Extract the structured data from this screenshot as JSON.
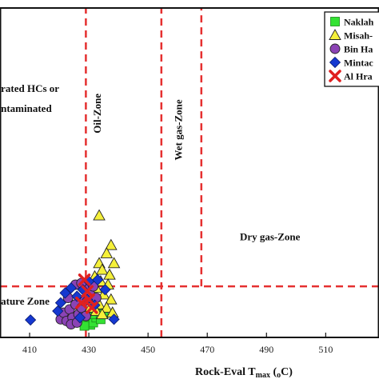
{
  "chart_data": {
    "type": "scatter",
    "title": "",
    "xlabel": "Rock-Eval T",
    "xlabel_sub": "max",
    "xlabel_unit": " (",
    "xlabel_unit_sub": "o",
    "xlabel_unit_end": "C)",
    "ylabel": "",
    "xlim": [
      400,
      528
    ],
    "ylim": [
      0,
      1.0
    ],
    "x_ticks": [
      410,
      430,
      450,
      470,
      490,
      510
    ],
    "x_tick_labels": [
      "410",
      "430",
      "450",
      "470",
      "490",
      "510"
    ],
    "grid": false,
    "legend_position": "top-right",
    "boundaries": {
      "vertical": [
        {
          "x": 429,
          "y_from": 0.0,
          "y_to": 1.0
        },
        {
          "x": 454.5,
          "y_from": 0.0,
          "y_to": 1.0
        },
        {
          "x": 468,
          "y_from": 0.155,
          "y_to": 1.0
        }
      ],
      "horizontal": [
        {
          "y": 0.155,
          "x_from": 400,
          "x_to": 528
        }
      ],
      "color": "#e53030"
    },
    "zones": [
      {
        "label": "rated HCs or",
        "x": 400.3,
        "y": 0.745
      },
      {
        "label": "ntaminated",
        "x": 400.3,
        "y": 0.685
      },
      {
        "label": "Oil-Zone",
        "x": 434,
        "y": 0.68,
        "rotated": true
      },
      {
        "label": "Wet gas-Zone",
        "x": 461.5,
        "y": 0.63,
        "rotated": true
      },
      {
        "label": "Dry gas-Zone",
        "x": 481,
        "y": 0.295
      },
      {
        "label": "ature Zone",
        "x": 400.3,
        "y": 0.1
      }
    ],
    "series": [
      {
        "name": "Naklah",
        "marker": "square",
        "color": "#33e233",
        "points": [
          {
            "x": 429.5,
            "y": 0.05
          },
          {
            "x": 430.5,
            "y": 0.038
          },
          {
            "x": 431.5,
            "y": 0.045
          },
          {
            "x": 432.5,
            "y": 0.06
          },
          {
            "x": 433,
            "y": 0.075
          },
          {
            "x": 434,
            "y": 0.055
          },
          {
            "x": 435,
            "y": 0.07
          },
          {
            "x": 428.5,
            "y": 0.035
          },
          {
            "x": 431,
            "y": 0.07
          }
        ]
      },
      {
        "name": "Misah-",
        "marker": "triangle",
        "color": "#f5f03a",
        "points": [
          {
            "x": 433.5,
            "y": 0.37
          },
          {
            "x": 437.5,
            "y": 0.28
          },
          {
            "x": 436,
            "y": 0.255
          },
          {
            "x": 438.5,
            "y": 0.225
          },
          {
            "x": 433.5,
            "y": 0.225
          },
          {
            "x": 434.5,
            "y": 0.205
          },
          {
            "x": 437,
            "y": 0.19
          },
          {
            "x": 432,
            "y": 0.185
          },
          {
            "x": 434,
            "y": 0.17
          },
          {
            "x": 436.5,
            "y": 0.16
          },
          {
            "x": 432.5,
            "y": 0.15
          },
          {
            "x": 435,
            "y": 0.13
          },
          {
            "x": 431.5,
            "y": 0.12
          },
          {
            "x": 437.5,
            "y": 0.115
          },
          {
            "x": 433.5,
            "y": 0.1
          },
          {
            "x": 436,
            "y": 0.09
          },
          {
            "x": 430.5,
            "y": 0.09
          },
          {
            "x": 432.5,
            "y": 0.08
          },
          {
            "x": 438,
            "y": 0.075
          },
          {
            "x": 434.5,
            "y": 0.07
          }
        ]
      },
      {
        "name": "Bin Ha",
        "marker": "circle",
        "color": "#8b43b5",
        "points": [
          {
            "x": 420.5,
            "y": 0.055
          },
          {
            "x": 421.5,
            "y": 0.075
          },
          {
            "x": 422.5,
            "y": 0.05
          },
          {
            "x": 423.5,
            "y": 0.085
          },
          {
            "x": 424.5,
            "y": 0.06
          },
          {
            "x": 425.5,
            "y": 0.1
          },
          {
            "x": 426.5,
            "y": 0.07
          },
          {
            "x": 427.5,
            "y": 0.09
          },
          {
            "x": 428.5,
            "y": 0.11
          },
          {
            "x": 424,
            "y": 0.04
          },
          {
            "x": 426,
            "y": 0.045
          },
          {
            "x": 423,
            "y": 0.12
          },
          {
            "x": 429.5,
            "y": 0.16
          },
          {
            "x": 425.5,
            "y": 0.16
          },
          {
            "x": 427.5,
            "y": 0.165
          },
          {
            "x": 430.5,
            "y": 0.13
          },
          {
            "x": 431.5,
            "y": 0.155
          },
          {
            "x": 432.5,
            "y": 0.12
          },
          {
            "x": 429,
            "y": 0.065
          }
        ]
      },
      {
        "name": "Mintac",
        "marker": "diamond",
        "color": "#1538d0",
        "points": [
          {
            "x": 410.3,
            "y": 0.053
          },
          {
            "x": 419.5,
            "y": 0.08
          },
          {
            "x": 420.5,
            "y": 0.105
          },
          {
            "x": 422,
            "y": 0.135
          },
          {
            "x": 424,
            "y": 0.15
          },
          {
            "x": 426,
            "y": 0.125
          },
          {
            "x": 428,
            "y": 0.145
          },
          {
            "x": 430,
            "y": 0.17
          },
          {
            "x": 433,
            "y": 0.175
          },
          {
            "x": 435.5,
            "y": 0.145
          },
          {
            "x": 427,
            "y": 0.06
          },
          {
            "x": 432,
            "y": 0.098
          },
          {
            "x": 438.5,
            "y": 0.055
          },
          {
            "x": 429.5,
            "y": 0.115
          }
        ]
      },
      {
        "name": "Al Hra",
        "marker": "x",
        "color": "#e02020",
        "points": [
          {
            "x": 427.5,
            "y": 0.105
          },
          {
            "x": 429.5,
            "y": 0.14
          },
          {
            "x": 431,
            "y": 0.09
          },
          {
            "x": 428.5,
            "y": 0.175
          },
          {
            "x": 430,
            "y": 0.115
          }
        ]
      }
    ]
  }
}
